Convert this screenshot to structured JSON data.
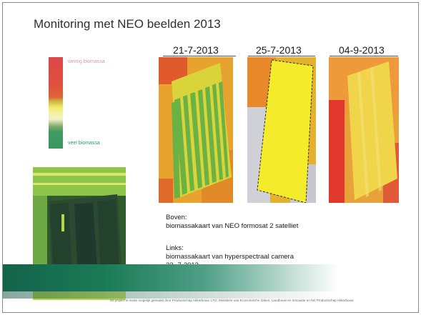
{
  "slide": {
    "title": "Monitoring met NEO beelden 2013",
    "legend": {
      "high_label": "weinig biomassa",
      "low_label": "veel biomassa",
      "colors": [
        "#d9474a",
        "#e0643a",
        "#f2ea6e",
        "#f2f0c8",
        "#3a955f"
      ]
    },
    "dates": [
      "21-7-2013",
      "25-7-2013",
      "04-9-2013"
    ],
    "caption_top": {
      "heading": "Boven:",
      "text": "biomassakaart van NEO  formosat 2 satelliet"
    },
    "caption_left": {
      "heading": "Links:",
      "text": "biomassakaart van hyperspectraal camera",
      "date": "23 -7-2013"
    },
    "footer": "Dit project is mede mogelijk gemaakt door Productschap Akkerbouw, LTO, Ministerie van Economische Zaken, Landbouw en Innovatie en het Productschap Akkerbouw"
  }
}
